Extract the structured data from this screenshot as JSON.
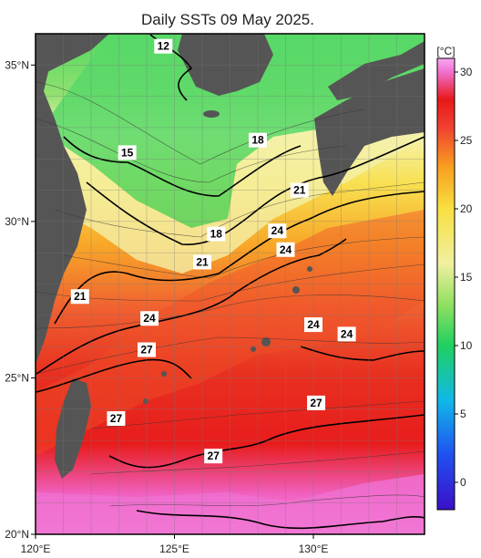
{
  "title": "Daily SSTs 09 May 2025.",
  "colorbar": {
    "unit_label": "[°C]",
    "min": -2,
    "max": 31,
    "ticks": [
      "0",
      "5",
      "10",
      "15",
      "20",
      "25",
      "30"
    ],
    "tick_values": [
      0,
      5,
      10,
      15,
      20,
      25,
      30
    ],
    "colors": [
      {
        "t": -2,
        "c": "#3a10c8"
      },
      {
        "t": 2,
        "c": "#2050f0"
      },
      {
        "t": 6,
        "c": "#10b8e8"
      },
      {
        "t": 10,
        "c": "#20d060"
      },
      {
        "t": 13,
        "c": "#90e060"
      },
      {
        "t": 16,
        "c": "#f0f0a0"
      },
      {
        "t": 20,
        "c": "#f8e040"
      },
      {
        "t": 23,
        "c": "#f8a020"
      },
      {
        "t": 26,
        "c": "#f04030"
      },
      {
        "t": 28,
        "c": "#e81818"
      },
      {
        "t": 30,
        "c": "#f070d0"
      },
      {
        "t": 31,
        "c": "#f8a8f0"
      }
    ]
  },
  "axes": {
    "lon_range": [
      120,
      134
    ],
    "lat_range": [
      20,
      36
    ],
    "x_ticks": [
      "120°E",
      "125°E",
      "130°E"
    ],
    "x_tick_values": [
      120,
      125,
      130
    ],
    "y_ticks": [
      "20°N",
      "25°N",
      "30°N",
      "35°N"
    ],
    "y_tick_values": [
      20,
      25,
      30,
      35
    ]
  },
  "contour_labels": [
    {
      "text": "12",
      "lon": 124.6,
      "lat": 35.6
    },
    {
      "text": "15",
      "lon": 123.3,
      "lat": 32.2
    },
    {
      "text": "18",
      "lon": 128.0,
      "lat": 32.6
    },
    {
      "text": "21",
      "lon": 129.5,
      "lat": 31.0
    },
    {
      "text": "18",
      "lon": 126.5,
      "lat": 29.6
    },
    {
      "text": "24",
      "lon": 128.7,
      "lat": 29.7
    },
    {
      "text": "24",
      "lon": 129.0,
      "lat": 29.1
    },
    {
      "text": "21",
      "lon": 126.0,
      "lat": 28.7
    },
    {
      "text": "21",
      "lon": 121.6,
      "lat": 27.6
    },
    {
      "text": "24",
      "lon": 124.1,
      "lat": 26.9
    },
    {
      "text": "24",
      "lon": 130.0,
      "lat": 26.7
    },
    {
      "text": "24",
      "lon": 131.2,
      "lat": 26.4
    },
    {
      "text": "27",
      "lon": 124.0,
      "lat": 25.9
    },
    {
      "text": "27",
      "lon": 130.1,
      "lat": 24.2
    },
    {
      "text": "27",
      "lon": 122.9,
      "lat": 23.7
    },
    {
      "text": "27",
      "lon": 126.4,
      "lat": 22.5
    }
  ]
}
